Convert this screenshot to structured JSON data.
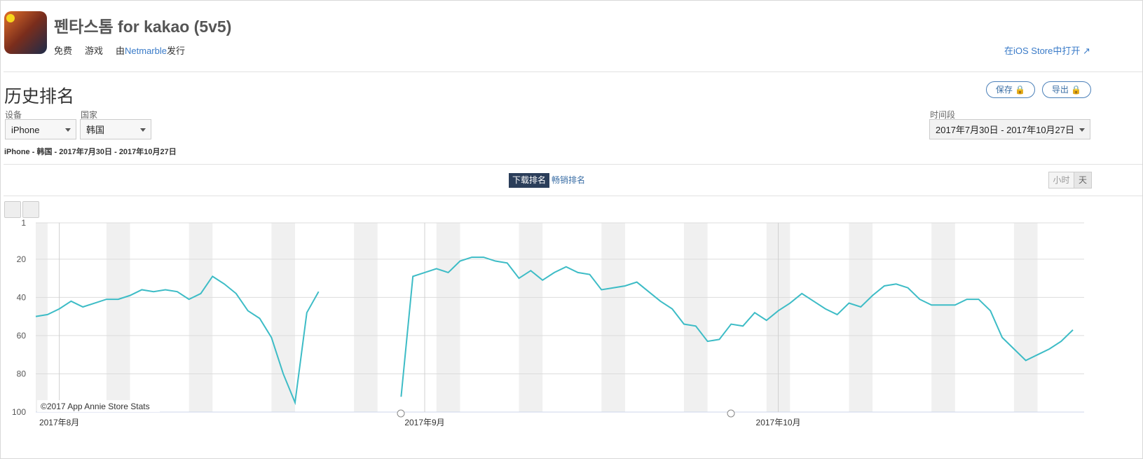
{
  "header": {
    "title": "펜타스톰 for kakao (5v5)",
    "price": "免费",
    "genre": "游戏",
    "publisher_prefix": "由",
    "publisher": "Netmarble",
    "publisher_suffix": "发行",
    "store_link": "在iOS Store中打开"
  },
  "section": {
    "title": "历史排名",
    "save": "保存",
    "export": "导出"
  },
  "filters": {
    "device_label": "设备",
    "device": "iPhone",
    "country_label": "国家",
    "country": "韩国",
    "period_label": "时间段",
    "period": "2017年7月30日 - 2017年10月27日",
    "summary": "iPhone - 韩国 - 2017年7月30日 - 2017年10月27日"
  },
  "tabs": {
    "items": [
      "下载排名",
      "畅销排名"
    ],
    "active": 0
  },
  "granularity": [
    "小时",
    "天"
  ],
  "chart_data": {
    "type": "line",
    "credit": "©2017 App Annie Store Stats",
    "categories": [
      null,
      null,
      "2017年8月",
      null,
      null,
      null,
      null,
      null,
      null,
      null,
      null,
      null,
      null,
      null,
      null,
      null,
      null,
      null,
      null,
      null,
      null,
      null,
      null,
      null,
      null,
      null,
      null,
      null,
      null,
      null,
      null,
      null,
      null,
      "2017年9月",
      null,
      null,
      null,
      null,
      null,
      null,
      null,
      null,
      null,
      null,
      null,
      null,
      null,
      null,
      null,
      null,
      null,
      null,
      null,
      null,
      null,
      null,
      null,
      null,
      null,
      null,
      null,
      null,
      null,
      "2017年10月",
      null,
      null,
      null,
      null,
      null,
      null,
      null,
      null,
      null,
      null,
      null,
      null,
      null,
      null,
      null,
      null,
      null,
      null,
      null,
      null,
      null,
      null,
      null,
      null,
      null
    ],
    "series": [
      {
        "name": "下载排名",
        "color": "#3dbcc6",
        "values": [
          50,
          49,
          46,
          42,
          45,
          43,
          41,
          41,
          39,
          36,
          37,
          36,
          37,
          41,
          38,
          29,
          33,
          38,
          47,
          51,
          61,
          80,
          95,
          48,
          37,
          null,
          null,
          null,
          null,
          null,
          null,
          92,
          29,
          27,
          25,
          27,
          21,
          19,
          19,
          21,
          22,
          30,
          26,
          31,
          27,
          24,
          27,
          28,
          36,
          35,
          34,
          32,
          37,
          42,
          46,
          54,
          55,
          63,
          62,
          54,
          55,
          48,
          52,
          47,
          43,
          38,
          42,
          46,
          49,
          43,
          45,
          39,
          34,
          33,
          35,
          41,
          44,
          44,
          44,
          41,
          41,
          47,
          61,
          67,
          73,
          70,
          67,
          63,
          57
        ]
      }
    ],
    "ylim": [
      1,
      100
    ],
    "yticks": [
      1,
      20,
      40,
      60,
      80,
      100
    ],
    "y_reversed": true,
    "grid": true
  }
}
